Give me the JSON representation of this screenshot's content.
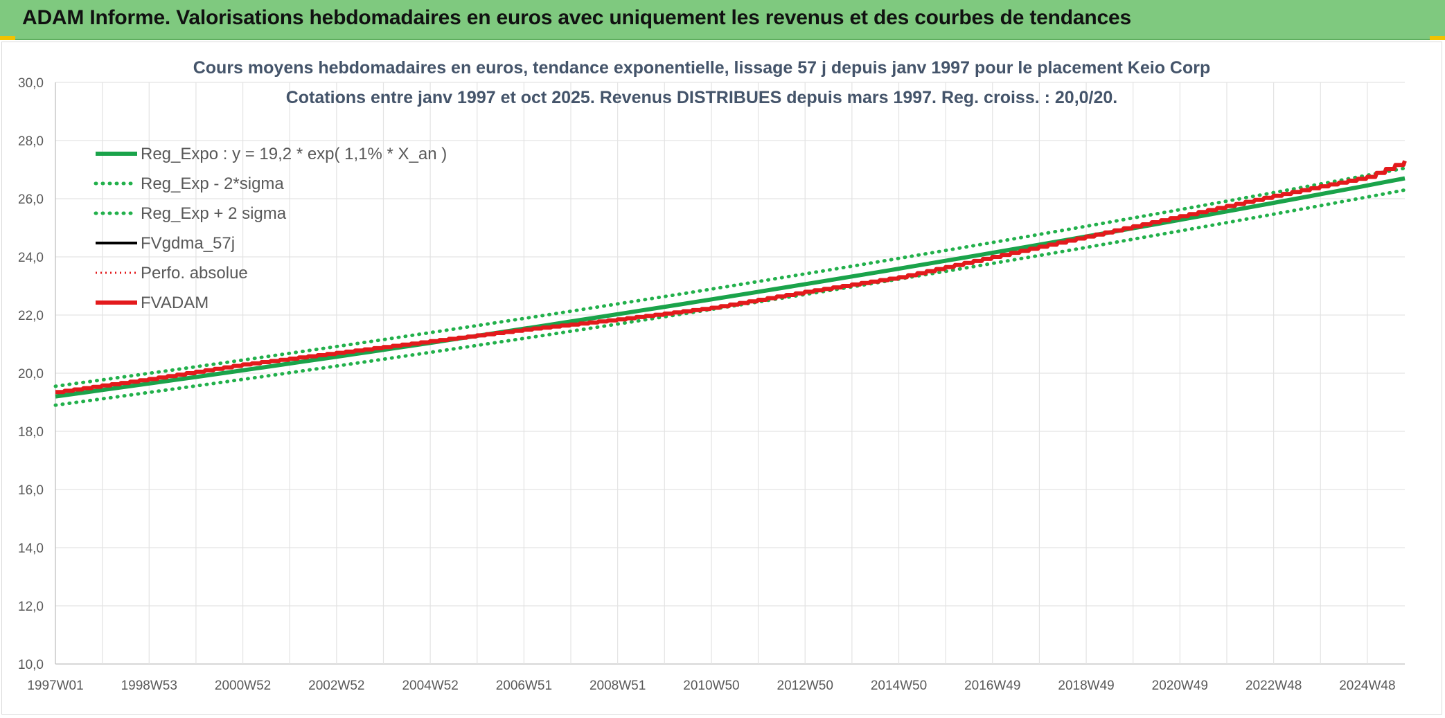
{
  "banner": {
    "title": "ADAM Informe. Valorisations hebdomadaires en euros avec uniquement les revenus et des courbes de tendances"
  },
  "colors": {
    "banner_bg": "#7fc97f",
    "corner_accent": "#f2c200",
    "reg_green": "#1aa34a",
    "band_green": "#22b04b",
    "fv_black": "#000000",
    "adam_red": "#e31a1c"
  },
  "chart_data": {
    "type": "line",
    "title": "Cours moyens hebdomadaires en euros, tendance exponentielle, lissage 57 j depuis janv 1997 pour le placement Keio Corp",
    "subtitle": "Cotations entre janv 1997 et oct 2025. Revenus DISTRIBUES depuis mars 1997. Reg. croiss. : 20,0/20.",
    "xlabel": "",
    "ylabel": "",
    "ylim": [
      10,
      30
    ],
    "yticks": [
      "10,0",
      "12,0",
      "14,0",
      "16,0",
      "18,0",
      "20,0",
      "22,0",
      "24,0",
      "26,0",
      "28,0",
      "30,0"
    ],
    "xlim": [
      1997.0,
      2025.8
    ],
    "xticks": [
      {
        "label": "1997W01",
        "year": 1997.0
      },
      {
        "label": "1998W53",
        "year": 1999.0
      },
      {
        "label": "2000W52",
        "year": 2001.0
      },
      {
        "label": "2002W52",
        "year": 2003.0
      },
      {
        "label": "2004W52",
        "year": 2005.0
      },
      {
        "label": "2006W51",
        "year": 2007.0
      },
      {
        "label": "2008W51",
        "year": 2009.0
      },
      {
        "label": "2010W50",
        "year": 2011.0
      },
      {
        "label": "2012W50",
        "year": 2013.0
      },
      {
        "label": "2014W50",
        "year": 2015.0
      },
      {
        "label": "2016W49",
        "year": 2017.0
      },
      {
        "label": "2018W49",
        "year": 2019.0
      },
      {
        "label": "2020W49",
        "year": 2021.0
      },
      {
        "label": "2022W48",
        "year": 2023.0
      },
      {
        "label": "2024W48",
        "year": 2025.0
      }
    ],
    "grid": true,
    "legend_position": "top-left",
    "series": [
      {
        "name": "Reg_Expo : y = 19,2 * exp( 1,1% *  X_an )",
        "style": "solid",
        "color": "#1aa34a",
        "x": [
          1997.0,
          2025.8
        ],
        "y": [
          19.2,
          26.7
        ]
      },
      {
        "name": "Reg_Exp - 2*sigma",
        "style": "dotted",
        "color": "#22b04b",
        "x": [
          1997.0,
          2025.8
        ],
        "y": [
          18.9,
          26.3
        ]
      },
      {
        "name": "Reg_Exp + 2 sigma",
        "style": "dotted",
        "color": "#22b04b",
        "x": [
          1997.0,
          2025.8
        ],
        "y": [
          19.55,
          27.05
        ]
      },
      {
        "name": "FVgdma_57j",
        "style": "solid",
        "color": "#000000",
        "x": [
          1997.0,
          1999.0,
          2001.0,
          2003.0,
          2005.0,
          2007.0,
          2009.0,
          2011.0,
          2013.0,
          2015.0,
          2017.0,
          2019.0,
          2021.0,
          2023.0,
          2025.0,
          2025.8
        ],
        "y": [
          19.35,
          19.8,
          20.3,
          20.7,
          21.1,
          21.5,
          21.85,
          22.25,
          22.8,
          23.3,
          24.0,
          24.7,
          25.4,
          26.1,
          26.75,
          27.3
        ]
      },
      {
        "name": "Perfo. absolue",
        "style": "dotted",
        "color": "#e31a1c",
        "x": [
          1997.0,
          1999.0,
          2001.0,
          2003.0,
          2005.0,
          2007.0,
          2009.0,
          2011.0,
          2013.0,
          2015.0,
          2017.0,
          2019.0,
          2021.0,
          2023.0,
          2025.0,
          2025.8
        ],
        "y": [
          19.35,
          19.8,
          20.3,
          20.7,
          21.1,
          21.5,
          21.85,
          22.25,
          22.8,
          23.3,
          24.0,
          24.7,
          25.4,
          26.1,
          26.75,
          27.3
        ]
      },
      {
        "name": "FVADAM",
        "style": "solid",
        "color": "#e31a1c",
        "x": [
          1997.0,
          1999.0,
          2001.0,
          2003.0,
          2005.0,
          2007.0,
          2009.0,
          2011.0,
          2013.0,
          2015.0,
          2017.0,
          2019.0,
          2021.0,
          2023.0,
          2025.0,
          2025.8
        ],
        "y": [
          19.35,
          19.8,
          20.3,
          20.7,
          21.1,
          21.5,
          21.85,
          22.25,
          22.8,
          23.3,
          24.0,
          24.7,
          25.4,
          26.1,
          26.75,
          27.3
        ]
      }
    ]
  }
}
